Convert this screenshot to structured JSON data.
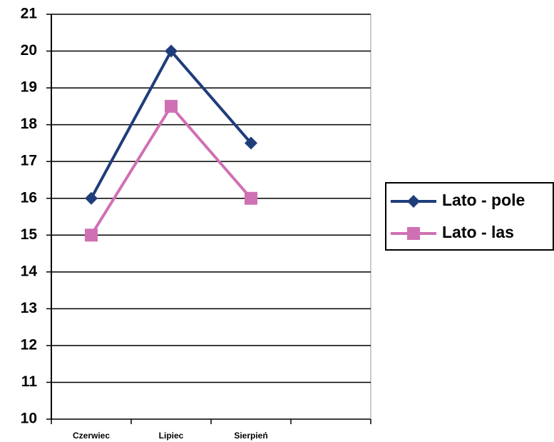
{
  "chart_data": {
    "type": "line",
    "categories": [
      "Czerwiec",
      "Lipiec",
      "Sierpień",
      null
    ],
    "series": [
      {
        "name": "Lato - pole",
        "color": "#1f3d7a",
        "marker": "diamond",
        "values": [
          16,
          20,
          17.5,
          null
        ]
      },
      {
        "name": "Lato - las",
        "color": "#d070b4",
        "marker": "square",
        "values": [
          15,
          18.5,
          16,
          null
        ]
      }
    ],
    "ylim": [
      10,
      21
    ],
    "yticks": [
      10,
      11,
      12,
      13,
      14,
      15,
      16,
      17,
      18,
      19,
      20,
      21
    ],
    "grid": true,
    "legend": "right"
  }
}
